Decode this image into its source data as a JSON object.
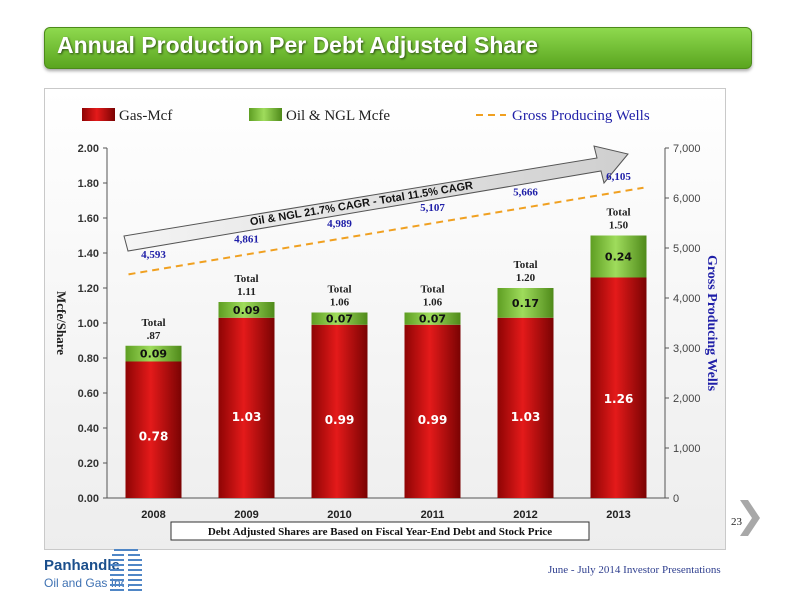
{
  "slide": {
    "title": "Annual Production Per Debt Adjusted Share",
    "page_number": "23",
    "footer": "June - July 2014 Investor Presentations",
    "logo": {
      "line1": "Panhandle",
      "line2": "Oil and Gas Inc."
    },
    "colors": {
      "title_bar": "#6cbb2c",
      "gas": "#c80c0c",
      "oil": "#7cc53c",
      "wells_line": "#f0a020",
      "wells_text": "#1f1fa8"
    }
  },
  "chart_data": {
    "type": "bar",
    "stacked": true,
    "categories": [
      "2008",
      "2009",
      "2010",
      "2011",
      "2012",
      "2013"
    ],
    "series": [
      {
        "name": "Gas-Mcf",
        "values": [
          0.78,
          1.03,
          0.99,
          0.99,
          1.03,
          1.26
        ],
        "labels": [
          "0.78",
          "1.03",
          "0.99",
          "0.99",
          "1.03",
          "1.26"
        ]
      },
      {
        "name": "Oil & NGL Mcfe",
        "values": [
          0.09,
          0.09,
          0.07,
          0.07,
          0.17,
          0.24
        ],
        "labels": [
          "0.09",
          "0.09",
          "0.07",
          "0.07",
          "0.17",
          "0.24"
        ]
      }
    ],
    "totals": [
      {
        "label": "Total",
        "value": ".87"
      },
      {
        "label": "Total",
        "value": "1.11"
      },
      {
        "label": "Total",
        "value": "1.06"
      },
      {
        "label": "Total",
        "value": "1.06"
      },
      {
        "label": "Total",
        "value": "1.20"
      },
      {
        "label": "Total",
        "value": "1.50"
      }
    ],
    "line_series": {
      "name": "Gross Producing Wells",
      "axis": "right",
      "values": [
        4593,
        4861,
        4989,
        5107,
        5666,
        6105
      ],
      "labels": [
        "4,593",
        "4,861",
        "4,989",
        "5,107",
        "5,666",
        "6,105"
      ]
    },
    "ylabel": "Mcfe/Share",
    "y2label": "Gross Producing Wells",
    "ylim": [
      0,
      2.0
    ],
    "y2lim": [
      0,
      7000
    ],
    "yticks": [
      "0.00",
      "0.20",
      "0.40",
      "0.60",
      "0.80",
      "1.00",
      "1.20",
      "1.40",
      "1.60",
      "1.80",
      "2.00"
    ],
    "y2ticks": [
      "0",
      "1,000",
      "2,000",
      "3,000",
      "4,000",
      "5,000",
      "6,000",
      "7,000"
    ],
    "annotation": "Oil & NGL 21.7% CAGR - Total  11.5% CAGR",
    "note": "Debt Adjusted Shares are Based on Fiscal Year-End Debt and Stock Price",
    "legend_position": "top",
    "grid": false
  }
}
